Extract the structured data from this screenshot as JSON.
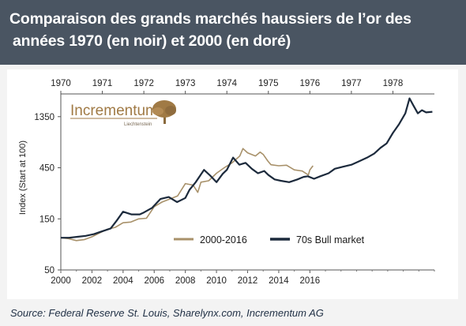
{
  "header": {
    "title_line1": "Comparaison des grands marchés haussiers de l’or des",
    "title_line2": "années 1970 (en noir) et 2000 (en doré)"
  },
  "logo": {
    "name": "Incrementum",
    "subtitle": "Liechtenstein"
  },
  "source": "Source: Federal Reserve St. Louis, Sharelynx.com, Incrementum AG",
  "colors": {
    "header_bg": "#4a5562",
    "series_2000": "#a8916a",
    "series_70s": "#1c2a3c",
    "logo_tree": "#a07a45"
  },
  "chart_data": {
    "type": "line",
    "ylabel": "Index (Start at 100)",
    "y_scale": "log",
    "yticks": [
      50,
      150,
      450,
      1350
    ],
    "ylim": [
      50,
      2200
    ],
    "x_bottom": {
      "ticks": [
        "2000",
        "2002",
        "2004",
        "2006",
        "2008",
        "2010",
        "2012",
        "2014",
        "2016"
      ],
      "range": [
        2000,
        2024
      ]
    },
    "x_top": {
      "ticks": [
        "1970",
        "1971",
        "1972",
        "1973",
        "1974",
        "1975",
        "1976",
        "1977",
        "1978"
      ],
      "range": [
        1970,
        1979
      ]
    },
    "grid": false,
    "legend": "bottom-center",
    "series": [
      {
        "name": "2000-2016",
        "axis": "bottom",
        "points": [
          [
            2000.0,
            100
          ],
          [
            2000.5,
            98
          ],
          [
            2001.0,
            94
          ],
          [
            2001.5,
            96
          ],
          [
            2002.0,
            102
          ],
          [
            2002.5,
            111
          ],
          [
            2003.0,
            120
          ],
          [
            2003.5,
            125
          ],
          [
            2004.0,
            138
          ],
          [
            2004.5,
            140
          ],
          [
            2005.0,
            150
          ],
          [
            2005.5,
            152
          ],
          [
            2006.0,
            195
          ],
          [
            2006.5,
            215
          ],
          [
            2007.0,
            230
          ],
          [
            2007.5,
            245
          ],
          [
            2008.0,
            320
          ],
          [
            2008.5,
            310
          ],
          [
            2008.8,
            265
          ],
          [
            2009.0,
            330
          ],
          [
            2009.5,
            340
          ],
          [
            2010.0,
            400
          ],
          [
            2010.5,
            450
          ],
          [
            2011.0,
            500
          ],
          [
            2011.5,
            580
          ],
          [
            2011.7,
            680
          ],
          [
            2012.0,
            620
          ],
          [
            2012.5,
            580
          ],
          [
            2012.8,
            630
          ],
          [
            2013.0,
            600
          ],
          [
            2013.3,
            520
          ],
          [
            2013.5,
            480
          ],
          [
            2014.0,
            470
          ],
          [
            2014.5,
            475
          ],
          [
            2015.0,
            430
          ],
          [
            2015.5,
            420
          ],
          [
            2015.9,
            385
          ],
          [
            2016.0,
            430
          ],
          [
            2016.2,
            470
          ]
        ]
      },
      {
        "name": "70s Bull market",
        "axis": "top",
        "points": [
          [
            1970.0,
            100
          ],
          [
            1970.2,
            100
          ],
          [
            1970.4,
            102
          ],
          [
            1970.6,
            104
          ],
          [
            1970.8,
            108
          ],
          [
            1971.0,
            115
          ],
          [
            1971.2,
            122
          ],
          [
            1971.35,
            145
          ],
          [
            1971.5,
            175
          ],
          [
            1971.7,
            165
          ],
          [
            1971.9,
            165
          ],
          [
            1972.0,
            172
          ],
          [
            1972.2,
            190
          ],
          [
            1972.4,
            230
          ],
          [
            1972.6,
            240
          ],
          [
            1972.8,
            215
          ],
          [
            1973.0,
            235
          ],
          [
            1973.1,
            280
          ],
          [
            1973.25,
            330
          ],
          [
            1973.45,
            430
          ],
          [
            1973.6,
            380
          ],
          [
            1973.75,
            330
          ],
          [
            1973.9,
            395
          ],
          [
            1974.0,
            430
          ],
          [
            1974.15,
            560
          ],
          [
            1974.3,
            480
          ],
          [
            1974.45,
            500
          ],
          [
            1974.6,
            440
          ],
          [
            1974.75,
            400
          ],
          [
            1974.9,
            420
          ],
          [
            1975.0,
            385
          ],
          [
            1975.15,
            350
          ],
          [
            1975.3,
            340
          ],
          [
            1975.5,
            330
          ],
          [
            1975.7,
            350
          ],
          [
            1975.85,
            370
          ],
          [
            1975.95,
            375
          ],
          [
            1976.1,
            355
          ],
          [
            1976.25,
            375
          ],
          [
            1976.45,
            400
          ],
          [
            1976.6,
            440
          ],
          [
            1976.8,
            460
          ],
          [
            1977.0,
            480
          ],
          [
            1977.2,
            520
          ],
          [
            1977.4,
            565
          ],
          [
            1977.55,
            610
          ],
          [
            1977.7,
            690
          ],
          [
            1977.85,
            760
          ],
          [
            1978.0,
            950
          ],
          [
            1978.15,
            1150
          ],
          [
            1978.3,
            1450
          ],
          [
            1978.4,
            2000
          ],
          [
            1978.5,
            1700
          ],
          [
            1978.6,
            1450
          ],
          [
            1978.7,
            1550
          ],
          [
            1978.8,
            1480
          ],
          [
            1978.95,
            1500
          ]
        ]
      }
    ]
  }
}
